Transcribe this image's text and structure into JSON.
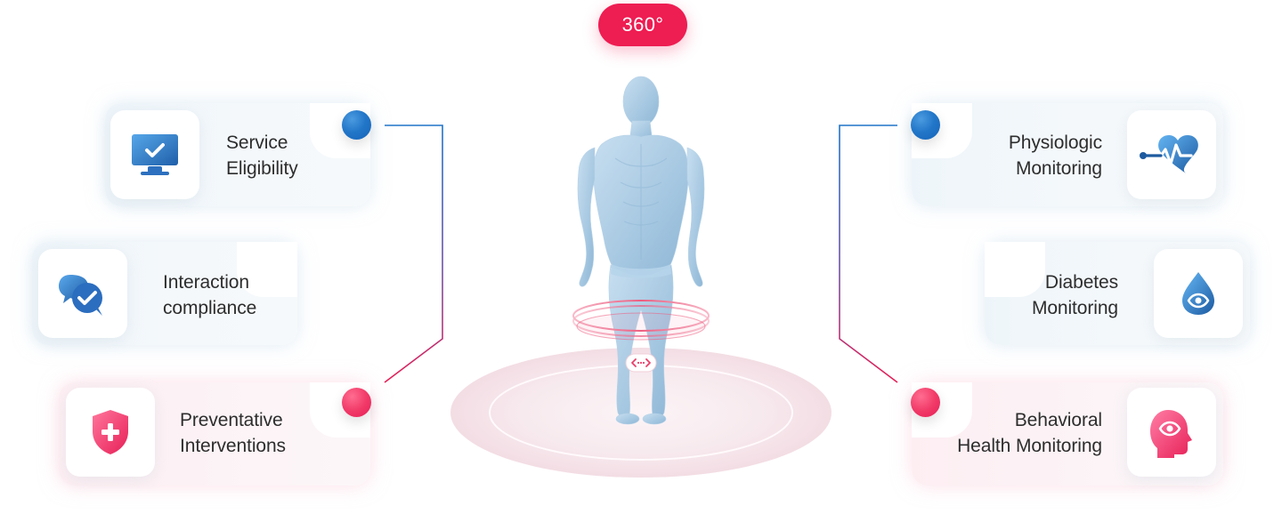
{
  "badge": {
    "label": "360°"
  },
  "cards": [
    {
      "key": "service_eligibility",
      "side": "left",
      "tone": "blue",
      "line1": "Service",
      "line2": "Eligibility",
      "icon": "monitor-check-icon"
    },
    {
      "key": "interaction_compliance",
      "side": "left",
      "tone": "blue",
      "line1": "Interaction",
      "line2": "compliance",
      "icon": "chat-check-icon"
    },
    {
      "key": "preventative_interventions",
      "side": "left",
      "tone": "pink",
      "line1": "Preventative",
      "line2": "Interventions",
      "icon": "shield-plus-icon"
    },
    {
      "key": "physiologic_monitoring",
      "side": "right",
      "tone": "blue",
      "line1": "Physiologic",
      "line2": "Monitoring",
      "icon": "heart-pulse-icon"
    },
    {
      "key": "diabetes_monitoring",
      "side": "right",
      "tone": "blue",
      "line1": "Diabetes",
      "line2": "Monitoring",
      "icon": "drop-eye-icon"
    },
    {
      "key": "behavioral_health_monitoring",
      "side": "right",
      "tone": "pink",
      "line1": "Behavioral",
      "line2": "Health Monitoring",
      "icon": "head-eye-icon"
    }
  ],
  "colors": {
    "accent_pink": "#ee1d52",
    "accent_blue": "#1f73c8",
    "text_dark": "#2d2d2d",
    "body_blue": "#a9cae2",
    "platform_pink": "#f8e2e8"
  },
  "rotation_control": {
    "icon": "rotate-arrows-icon"
  }
}
